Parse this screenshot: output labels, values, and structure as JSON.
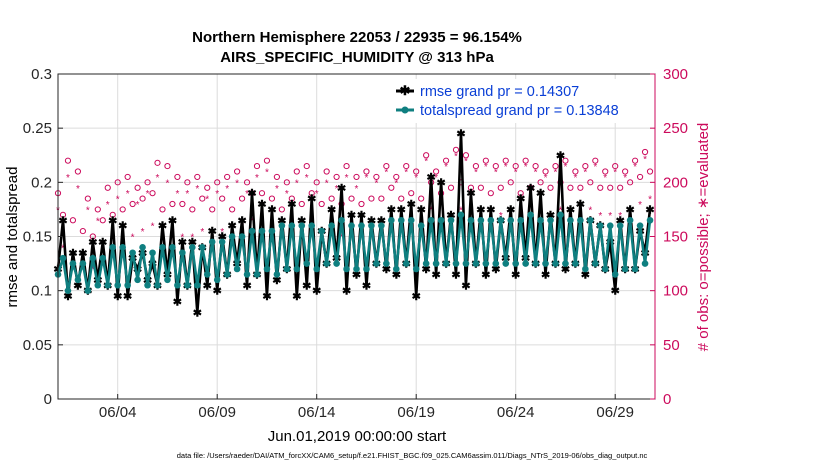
{
  "chart_data": {
    "type": "line",
    "title_line1": "Northern Hemisphere 22053 / 22935 = 96.154%",
    "title_line2": "AIRS_SPECIFIC_HUMIDITY @ 313 hPa",
    "xlabel": "Jun.01,2019 00:00:00 start",
    "ylabel_left": "rmse and totalspread",
    "ylabel_right": "# of obs: o=possible; ∗=evaluated",
    "footnote": "data file: /Users/raeder/DAI/ATM_forcXX/CAM6_setup/f.e21.FHIST_BGC.f09_025.CAM6assim.011/Diags_NTrS_2019-06/obs_diag_output.nc",
    "xlim": [
      1.0,
      31.0
    ],
    "ylim_left": [
      0,
      0.3
    ],
    "ylim_right": [
      0,
      300
    ],
    "x_ticks": [
      {
        "value": 4,
        "label": "06/04"
      },
      {
        "value": 9,
        "label": "06/09"
      },
      {
        "value": 14,
        "label": "06/14"
      },
      {
        "value": 19,
        "label": "06/19"
      },
      {
        "value": 24,
        "label": "06/24"
      },
      {
        "value": 29,
        "label": "06/29"
      }
    ],
    "y_ticks_left": [
      "0",
      "0.05",
      "0.1",
      "0.15",
      "0.2",
      "0.25",
      "0.3"
    ],
    "y_ticks_right": [
      "0",
      "50",
      "100",
      "150",
      "200",
      "250",
      "300"
    ],
    "legend": [
      {
        "label": "rmse grand pr = 0.14307",
        "color": "#000000"
      },
      {
        "label": "totalspread grand pr = 0.13848",
        "color": "#0f7f80"
      }
    ],
    "colors": {
      "rmse": "#000000",
      "spread": "#0f7f80",
      "obs": "#cc0a5c",
      "text_legend": "#0a3fd6"
    },
    "x": [
      1.0,
      1.25,
      1.5,
      1.75,
      2.0,
      2.25,
      2.5,
      2.75,
      3.0,
      3.25,
      3.5,
      3.75,
      4.0,
      4.25,
      4.5,
      4.75,
      5.0,
      5.25,
      5.5,
      5.75,
      6.0,
      6.25,
      6.5,
      6.75,
      7.0,
      7.25,
      7.5,
      7.75,
      8.0,
      8.25,
      8.5,
      8.75,
      9.0,
      9.25,
      9.5,
      9.75,
      10.0,
      10.25,
      10.5,
      10.75,
      11.0,
      11.25,
      11.5,
      11.75,
      12.0,
      12.25,
      12.5,
      12.75,
      13.0,
      13.25,
      13.5,
      13.75,
      14.0,
      14.25,
      14.5,
      14.75,
      15.0,
      15.25,
      15.5,
      15.75,
      16.0,
      16.25,
      16.5,
      16.75,
      17.0,
      17.25,
      17.5,
      17.75,
      18.0,
      18.25,
      18.5,
      18.75,
      19.0,
      19.25,
      19.5,
      19.75,
      20.0,
      20.25,
      20.5,
      20.75,
      21.0,
      21.25,
      21.5,
      21.75,
      22.0,
      22.25,
      22.5,
      22.75,
      23.0,
      23.25,
      23.5,
      23.75,
      24.0,
      24.25,
      24.5,
      24.75,
      25.0,
      25.25,
      25.5,
      25.75,
      26.0,
      26.25,
      26.5,
      26.75,
      27.0,
      27.25,
      27.5,
      27.75,
      28.0,
      28.25,
      28.5,
      28.75,
      29.0,
      29.25,
      29.5,
      29.75,
      30.0,
      30.25,
      30.5,
      30.75
    ],
    "series": [
      {
        "name": "rmse",
        "values": [
          0.12,
          0.165,
          0.095,
          0.135,
          0.105,
          0.135,
          0.1,
          0.145,
          0.11,
          0.145,
          0.105,
          0.165,
          0.095,
          0.16,
          0.095,
          0.13,
          0.12,
          0.135,
          0.11,
          0.125,
          0.105,
          0.16,
          0.115,
          0.165,
          0.09,
          0.145,
          0.105,
          0.145,
          0.08,
          0.14,
          0.105,
          0.155,
          0.1,
          0.15,
          0.115,
          0.16,
          0.125,
          0.165,
          0.105,
          0.19,
          0.115,
          0.18,
          0.095,
          0.175,
          0.11,
          0.165,
          0.12,
          0.18,
          0.095,
          0.165,
          0.105,
          0.185,
          0.1,
          0.155,
          0.125,
          0.175,
          0.13,
          0.195,
          0.1,
          0.17,
          0.115,
          0.17,
          0.105,
          0.165,
          0.125,
          0.165,
          0.12,
          0.175,
          0.115,
          0.175,
          0.125,
          0.18,
          0.095,
          0.175,
          0.12,
          0.205,
          0.115,
          0.2,
          0.125,
          0.17,
          0.115,
          0.245,
          0.105,
          0.19,
          0.125,
          0.175,
          0.115,
          0.175,
          0.12,
          0.165,
          0.13,
          0.175,
          0.115,
          0.185,
          0.13,
          0.195,
          0.125,
          0.19,
          0.115,
          0.17,
          0.125,
          0.225,
          0.12,
          0.175,
          0.125,
          0.18,
          0.115,
          0.165,
          0.125,
          0.16,
          0.12,
          0.145,
          0.1,
          0.165,
          0.12,
          0.175,
          0.12,
          0.155,
          0.135,
          0.175
        ]
      },
      {
        "name": "totalspread",
        "values": [
          0.115,
          0.13,
          0.1,
          0.125,
          0.11,
          0.125,
          0.1,
          0.13,
          0.105,
          0.13,
          0.105,
          0.14,
          0.105,
          0.14,
          0.105,
          0.135,
          0.11,
          0.14,
          0.105,
          0.135,
          0.105,
          0.14,
          0.11,
          0.14,
          0.105,
          0.135,
          0.105,
          0.14,
          0.105,
          0.14,
          0.115,
          0.145,
          0.11,
          0.145,
          0.115,
          0.15,
          0.12,
          0.15,
          0.115,
          0.155,
          0.115,
          0.155,
          0.12,
          0.155,
          0.115,
          0.16,
          0.12,
          0.16,
          0.12,
          0.16,
          0.125,
          0.16,
          0.12,
          0.155,
          0.125,
          0.16,
          0.125,
          0.165,
          0.12,
          0.16,
          0.12,
          0.16,
          0.12,
          0.16,
          0.125,
          0.16,
          0.125,
          0.165,
          0.12,
          0.165,
          0.125,
          0.165,
          0.12,
          0.16,
          0.125,
          0.165,
          0.125,
          0.165,
          0.125,
          0.165,
          0.125,
          0.17,
          0.125,
          0.165,
          0.125,
          0.165,
          0.125,
          0.165,
          0.125,
          0.165,
          0.125,
          0.165,
          0.125,
          0.165,
          0.125,
          0.17,
          0.125,
          0.165,
          0.125,
          0.165,
          0.125,
          0.17,
          0.125,
          0.165,
          0.125,
          0.165,
          0.12,
          0.165,
          0.125,
          0.16,
          0.12,
          0.16,
          0.115,
          0.16,
          0.12,
          0.165,
          0.12,
          0.16,
          0.125,
          0.165
        ]
      },
      {
        "name": "obs_possible",
        "axis": "right",
        "values": [
          190,
          170,
          220,
          165,
          210,
          155,
          185,
          150,
          175,
          165,
          195,
          170,
          200,
          175,
          205,
          180,
          195,
          185,
          200,
          190,
          218,
          175,
          215,
          180,
          205,
          180,
          200,
          175,
          205,
          185,
          195,
          175,
          200,
          185,
          205,
          175,
          210,
          185,
          200,
          190,
          215,
          190,
          220,
          185,
          205,
          175,
          200,
          185,
          210,
          180,
          215,
          190,
          200,
          180,
          210,
          185,
          205,
          180,
          215,
          185,
          205,
          180,
          210,
          185,
          205,
          185,
          215,
          195,
          205,
          185,
          215,
          190,
          210,
          185,
          225,
          200,
          210,
          190,
          220,
          195,
          230,
          200,
          225,
          195,
          215,
          195,
          220,
          190,
          215,
          195,
          220,
          200,
          215,
          190,
          220,
          195,
          215,
          200,
          210,
          195,
          215,
          200,
          220,
          195,
          210,
          195,
          215,
          200,
          220,
          195,
          210,
          195,
          215,
          195,
          210,
          200,
          220,
          205,
          228,
          210
        ]
      },
      {
        "name": "obs_evaluated",
        "axis": "right",
        "values": [
          175,
          140,
          205,
          125,
          195,
          135,
          175,
          120,
          165,
          140,
          180,
          135,
          185,
          145,
          190,
          150,
          180,
          155,
          190,
          160,
          205,
          150,
          200,
          155,
          190,
          150,
          190,
          150,
          195,
          155,
          185,
          150,
          190,
          155,
          195,
          150,
          200,
          160,
          190,
          165,
          205,
          165,
          210,
          160,
          195,
          150,
          190,
          160,
          200,
          155,
          205,
          165,
          190,
          150,
          200,
          155,
          195,
          150,
          205,
          160,
          195,
          155,
          205,
          160,
          200,
          160,
          210,
          170,
          200,
          160,
          210,
          165,
          205,
          160,
          220,
          175,
          205,
          165,
          215,
          170,
          225,
          175,
          220,
          170,
          210,
          170,
          215,
          165,
          210,
          170,
          215,
          175,
          210,
          165,
          215,
          170,
          210,
          175,
          205,
          170,
          210,
          175,
          215,
          170,
          205,
          170,
          210,
          175,
          215,
          170,
          205,
          170,
          210,
          170,
          205,
          175,
          215,
          180,
          222,
          185
        ]
      }
    ]
  }
}
